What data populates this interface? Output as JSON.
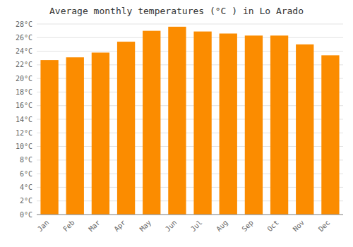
{
  "chart_data": {
    "type": "bar",
    "title": "Average monthly temperatures (°C ) in Lo Arado",
    "categories": [
      "Jan",
      "Feb",
      "Mar",
      "Apr",
      "May",
      "Jun",
      "Jul",
      "Aug",
      "Sep",
      "Oct",
      "Nov",
      "Dec"
    ],
    "values": [
      22.7,
      23.1,
      23.8,
      25.4,
      27.0,
      27.6,
      26.9,
      26.6,
      26.3,
      26.3,
      25.0,
      23.4
    ],
    "color": "#FB8C00",
    "ylim": [
      0,
      28
    ],
    "yticks": [
      {
        "value": 0,
        "label": "0°C"
      },
      {
        "value": 2,
        "label": "2°C"
      },
      {
        "value": 4,
        "label": "4°C"
      },
      {
        "value": 6,
        "label": "6°C"
      },
      {
        "value": 8,
        "label": "8°C"
      },
      {
        "value": 10,
        "label": "10°C"
      },
      {
        "value": 12,
        "label": "12°C"
      },
      {
        "value": 14,
        "label": "14°C"
      },
      {
        "value": 16,
        "label": "16°C"
      },
      {
        "value": 18,
        "label": "18°C"
      },
      {
        "value": 20,
        "label": "20°C"
      },
      {
        "value": 22,
        "label": "22°C"
      },
      {
        "value": 24,
        "label": "24°C"
      },
      {
        "value": 26,
        "label": "26°C"
      },
      {
        "value": 28,
        "label": "28°C"
      }
    ],
    "grid": true
  }
}
